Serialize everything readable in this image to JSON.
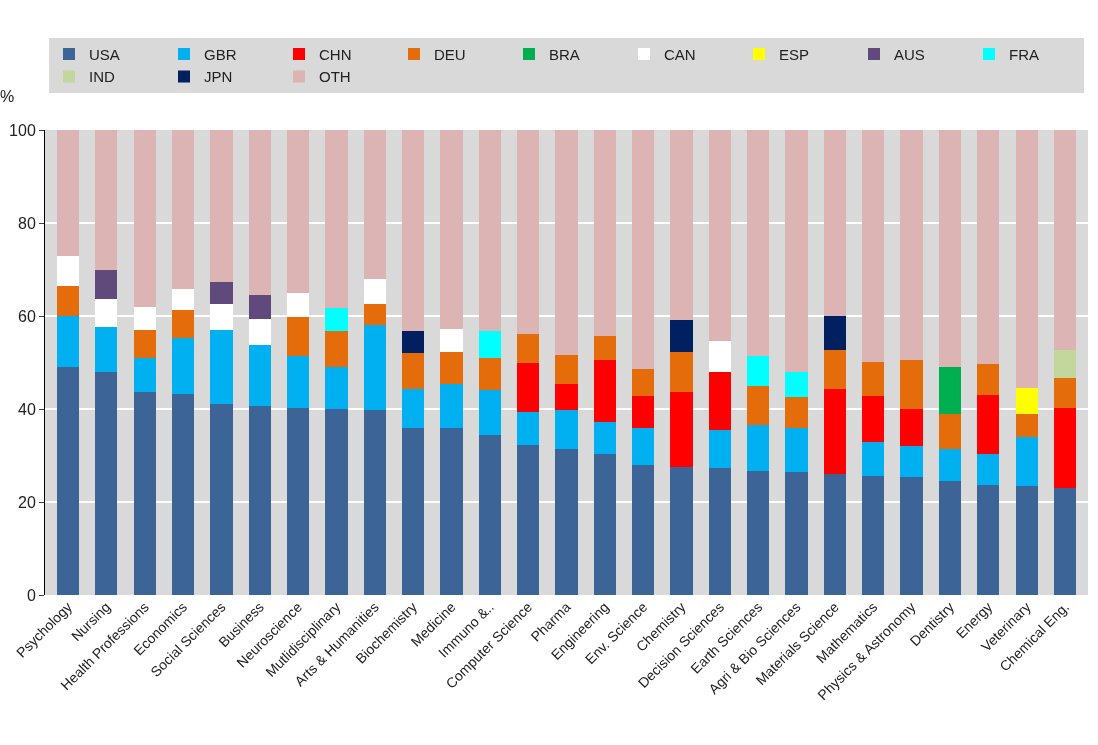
{
  "chart_data": {
    "type": "bar",
    "stacked": true,
    "ylabel": "%",
    "categories": [
      "Psychology",
      "Nursing",
      "Health Professions",
      "Economics",
      "Social Sciences",
      "Business",
      "Neuroscience",
      "Mutlidisciplinary",
      "Arts & Humanities",
      "Biochemistry",
      "Medicine",
      "Immuno &..",
      "Computer Science",
      "Pharma",
      "Engineering",
      "Env. Science",
      "Chemistry",
      "Decision Sciences",
      "Earth Sciences",
      "Agri & Bio Sciences",
      "Materials Science",
      "Mathematics",
      "Physics & Astronomy",
      "Dentistry",
      "Energy",
      "Veterinary",
      "Chemical Eng."
    ],
    "series": [
      {
        "name": "USA",
        "color": "#3c6496",
        "values": [
          49,
          48,
          43.7,
          43.2,
          41,
          40.7,
          40.3,
          40,
          39.8,
          36,
          36,
          34.5,
          32.2,
          31.5,
          30.3,
          28,
          27.6,
          27.3,
          26.7,
          26.5,
          26,
          25.7,
          25.3,
          24.5,
          23.7,
          23.5,
          23
        ]
      },
      {
        "name": "GBR",
        "color": "#00b0f0",
        "values": [
          11,
          9.7,
          7.3,
          12.1,
          16,
          13.1,
          11.2,
          9,
          18.2,
          8.3,
          9.3,
          9.5,
          7.2,
          8.2,
          6.8,
          8,
          null,
          8.2,
          9.8,
          9.5,
          null,
          7.2,
          6.7,
          7,
          6.6,
          10.5,
          null
        ]
      },
      {
        "name": "CHN",
        "color": "#ff0000",
        "values": [
          null,
          null,
          null,
          null,
          null,
          null,
          null,
          null,
          null,
          null,
          null,
          null,
          10.6,
          5.7,
          13.4,
          6.8,
          16.1,
          12.5,
          null,
          null,
          18.3,
          9.8,
          8.1,
          null,
          12.7,
          null,
          17.2
        ]
      },
      {
        "name": "DEU",
        "color": "#e46c0a",
        "values": [
          6.5,
          null,
          6,
          5.9,
          null,
          null,
          8.3,
          7.7,
          4.5,
          7.7,
          7,
          7,
          6.2,
          6.3,
          5.1,
          5.8,
          8.6,
          null,
          8.5,
          6.5,
          8.3,
          7.5,
          10.4,
          7.5,
          6.6,
          5,
          6.5
        ]
      },
      {
        "name": "BRA",
        "color": "#00b050",
        "values": [
          null,
          null,
          null,
          null,
          null,
          null,
          null,
          null,
          null,
          null,
          null,
          null,
          null,
          null,
          null,
          null,
          null,
          null,
          null,
          null,
          null,
          null,
          null,
          10,
          null,
          null,
          null
        ]
      },
      {
        "name": "CAN",
        "color": "#ffffff",
        "values": [
          6.5,
          6,
          5,
          4.6,
          5.5,
          5.6,
          5.2,
          null,
          5.5,
          null,
          5,
          null,
          null,
          null,
          null,
          null,
          null,
          6.7,
          null,
          null,
          null,
          null,
          null,
          null,
          null,
          null,
          null
        ]
      },
      {
        "name": "ESP",
        "color": "#ffff00",
        "values": [
          null,
          null,
          null,
          null,
          null,
          null,
          null,
          null,
          null,
          null,
          null,
          null,
          null,
          null,
          null,
          null,
          null,
          null,
          null,
          null,
          null,
          null,
          null,
          null,
          null,
          5.5,
          null
        ]
      },
      {
        "name": "AUS",
        "color": "#604a7b",
        "values": [
          null,
          6.3,
          null,
          null,
          4.8,
          5.1,
          null,
          null,
          null,
          null,
          null,
          null,
          null,
          null,
          null,
          null,
          null,
          null,
          null,
          null,
          null,
          null,
          null,
          null,
          null,
          null,
          null
        ]
      },
      {
        "name": "FRA",
        "color": "#00ffff",
        "values": [
          null,
          null,
          null,
          null,
          null,
          null,
          null,
          5.1,
          null,
          null,
          null,
          5.8,
          null,
          null,
          null,
          null,
          null,
          null,
          6.4,
          5.5,
          null,
          null,
          null,
          null,
          null,
          null,
          null
        ]
      },
      {
        "name": "IND",
        "color": "#c3d69b",
        "values": [
          null,
          null,
          null,
          null,
          null,
          null,
          null,
          null,
          null,
          null,
          null,
          null,
          null,
          null,
          null,
          null,
          null,
          null,
          null,
          null,
          null,
          null,
          null,
          null,
          null,
          null,
          6
        ]
      },
      {
        "name": "JPN",
        "color": "#002060",
        "values": [
          null,
          null,
          null,
          null,
          null,
          null,
          null,
          null,
          null,
          4.7,
          null,
          null,
          null,
          null,
          null,
          null,
          6.9,
          null,
          null,
          null,
          7.4,
          null,
          null,
          null,
          null,
          null,
          null
        ]
      },
      {
        "name": "OTH",
        "color": "#dcb4b4",
        "values": [
          27,
          30,
          38,
          34.2,
          32.7,
          35.5,
          35,
          38.2,
          32,
          43.3,
          42.7,
          43.2,
          43.8,
          48.3,
          44.4,
          51.4,
          40.8,
          45.3,
          48.6,
          52,
          40,
          49.8,
          49.5,
          51,
          50.4,
          55.5,
          47.3
        ]
      }
    ],
    "ylim": [
      0,
      100
    ],
    "yticks": [
      0,
      20,
      40,
      60,
      80,
      100
    ],
    "grid": "y",
    "legend": "top"
  }
}
